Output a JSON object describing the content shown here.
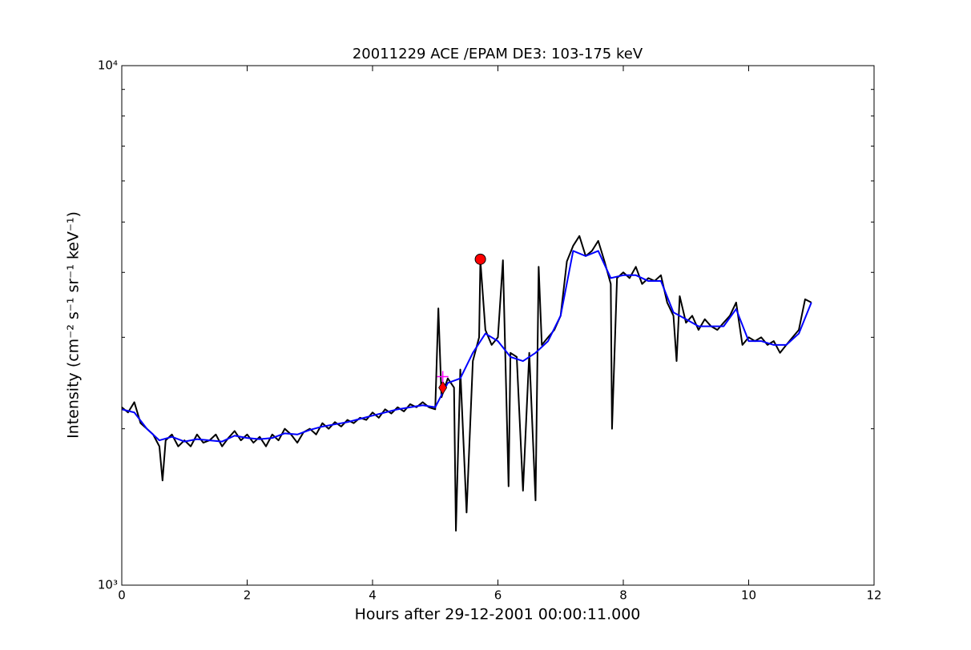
{
  "chart_data": {
    "type": "line",
    "title": "20011229 ACE /EPAM DE3: 103-175 keV",
    "x_label": "Hours after 29-12-2001 00:00:11.000",
    "y_label": "Intensity (cm⁻² s⁻¹ sr⁻¹ keV⁻¹)",
    "log_y": true,
    "xlim": [
      0,
      12
    ],
    "ylim": [
      1000,
      10000
    ],
    "xticks": [
      0,
      2,
      4,
      6,
      8,
      10,
      12
    ],
    "yticks": [
      {
        "value": 1000,
        "label": "10³"
      },
      {
        "value": 10000,
        "label": "10⁴"
      }
    ],
    "yminor_ticks": [
      2000,
      3000,
      4000,
      5000,
      6000,
      7000,
      8000,
      9000
    ],
    "series": [
      {
        "color": "#000000",
        "x": [
          0,
          0.1,
          0.2,
          0.3,
          0.4,
          0.5,
          0.6,
          0.65,
          0.7,
          0.8,
          0.9,
          1.0,
          1.1,
          1.2,
          1.3,
          1.4,
          1.5,
          1.6,
          1.7,
          1.8,
          1.9,
          2.0,
          2.1,
          2.2,
          2.3,
          2.4,
          2.5,
          2.6,
          2.7,
          2.8,
          2.9,
          3.0,
          3.1,
          3.2,
          3.3,
          3.4,
          3.5,
          3.6,
          3.7,
          3.8,
          3.9,
          4.0,
          4.1,
          4.2,
          4.3,
          4.4,
          4.5,
          4.6,
          4.7,
          4.8,
          4.9,
          5.0,
          5.05,
          5.1,
          5.2,
          5.3,
          5.33,
          5.4,
          5.5,
          5.6,
          5.7,
          5.72,
          5.8,
          5.9,
          6.0,
          6.08,
          6.17,
          6.2,
          6.3,
          6.4,
          6.5,
          6.6,
          6.65,
          6.7,
          6.8,
          6.9,
          7.0,
          7.1,
          7.2,
          7.3,
          7.4,
          7.5,
          7.6,
          7.7,
          7.8,
          7.82,
          7.9,
          8.0,
          8.1,
          8.2,
          8.3,
          8.4,
          8.5,
          8.6,
          8.7,
          8.8,
          8.85,
          8.9,
          9.0,
          9.1,
          9.2,
          9.3,
          9.4,
          9.5,
          9.6,
          9.7,
          9.8,
          9.9,
          10.0,
          10.1,
          10.2,
          10.3,
          10.4,
          10.5,
          10.6,
          10.7,
          10.8,
          10.9,
          11.0
        ],
        "values": [
          2200,
          2150,
          2250,
          2050,
          2000,
          1950,
          1850,
          1590,
          1900,
          1950,
          1850,
          1900,
          1850,
          1950,
          1880,
          1900,
          1950,
          1850,
          1920,
          1980,
          1900,
          1950,
          1880,
          1930,
          1850,
          1950,
          1900,
          2000,
          1950,
          1880,
          1970,
          2000,
          1950,
          2050,
          2000,
          2060,
          2020,
          2080,
          2050,
          2100,
          2080,
          2150,
          2100,
          2180,
          2140,
          2200,
          2160,
          2230,
          2200,
          2250,
          2200,
          2180,
          3410,
          2300,
          2500,
          2400,
          1273,
          2600,
          1380,
          2700,
          3000,
          4220,
          3100,
          2900,
          3000,
          4220,
          1550,
          2800,
          2750,
          1520,
          2800,
          1456,
          4100,
          2900,
          3000,
          3100,
          3300,
          4200,
          4500,
          4700,
          4300,
          4400,
          4600,
          4200,
          3800,
          2000,
          3900,
          4000,
          3900,
          4100,
          3800,
          3900,
          3850,
          3950,
          3500,
          3300,
          2700,
          3600,
          3200,
          3300,
          3100,
          3250,
          3150,
          3100,
          3200,
          3300,
          3500,
          2900,
          3000,
          2950,
          3000,
          2900,
          2950,
          2800,
          2900,
          3000,
          3100,
          3550,
          3500
        ]
      },
      {
        "color": "#0000ff",
        "x": [
          0,
          0.2,
          0.4,
          0.6,
          0.8,
          1.0,
          1.2,
          1.4,
          1.6,
          1.8,
          2.0,
          2.2,
          2.4,
          2.6,
          2.8,
          3.0,
          3.2,
          3.4,
          3.6,
          3.8,
          4.0,
          4.2,
          4.4,
          4.6,
          4.8,
          5.0,
          5.2,
          5.4,
          5.6,
          5.8,
          6.0,
          6.2,
          6.4,
          6.6,
          6.8,
          7.0,
          7.2,
          7.4,
          7.6,
          7.8,
          8.0,
          8.2,
          8.4,
          8.6,
          8.8,
          9.0,
          9.2,
          9.4,
          9.6,
          9.8,
          10.0,
          10.2,
          10.4,
          10.6,
          10.8,
          11.0
        ],
        "values": [
          2180,
          2150,
          2000,
          1900,
          1930,
          1890,
          1910,
          1900,
          1890,
          1940,
          1920,
          1910,
          1920,
          1960,
          1950,
          1990,
          2020,
          2040,
          2060,
          2090,
          2120,
          2150,
          2180,
          2200,
          2220,
          2200,
          2450,
          2500,
          2800,
          3050,
          2950,
          2750,
          2700,
          2800,
          2950,
          3300,
          4400,
          4300,
          4400,
          3900,
          3950,
          3950,
          3850,
          3850,
          3350,
          3250,
          3150,
          3150,
          3150,
          3400,
          2950,
          2950,
          2900,
          2900,
          3050,
          3500
        ]
      }
    ],
    "markers": [
      {
        "x": 5.72,
        "y": 4240,
        "shape": "circle",
        "color": "#ff0000"
      },
      {
        "x": 5.12,
        "y": 2400,
        "shape": "diamond",
        "color": "#ff0000"
      },
      {
        "x": 5.12,
        "y": 2520,
        "shape": "plus",
        "color": "#ff00ff"
      }
    ]
  }
}
